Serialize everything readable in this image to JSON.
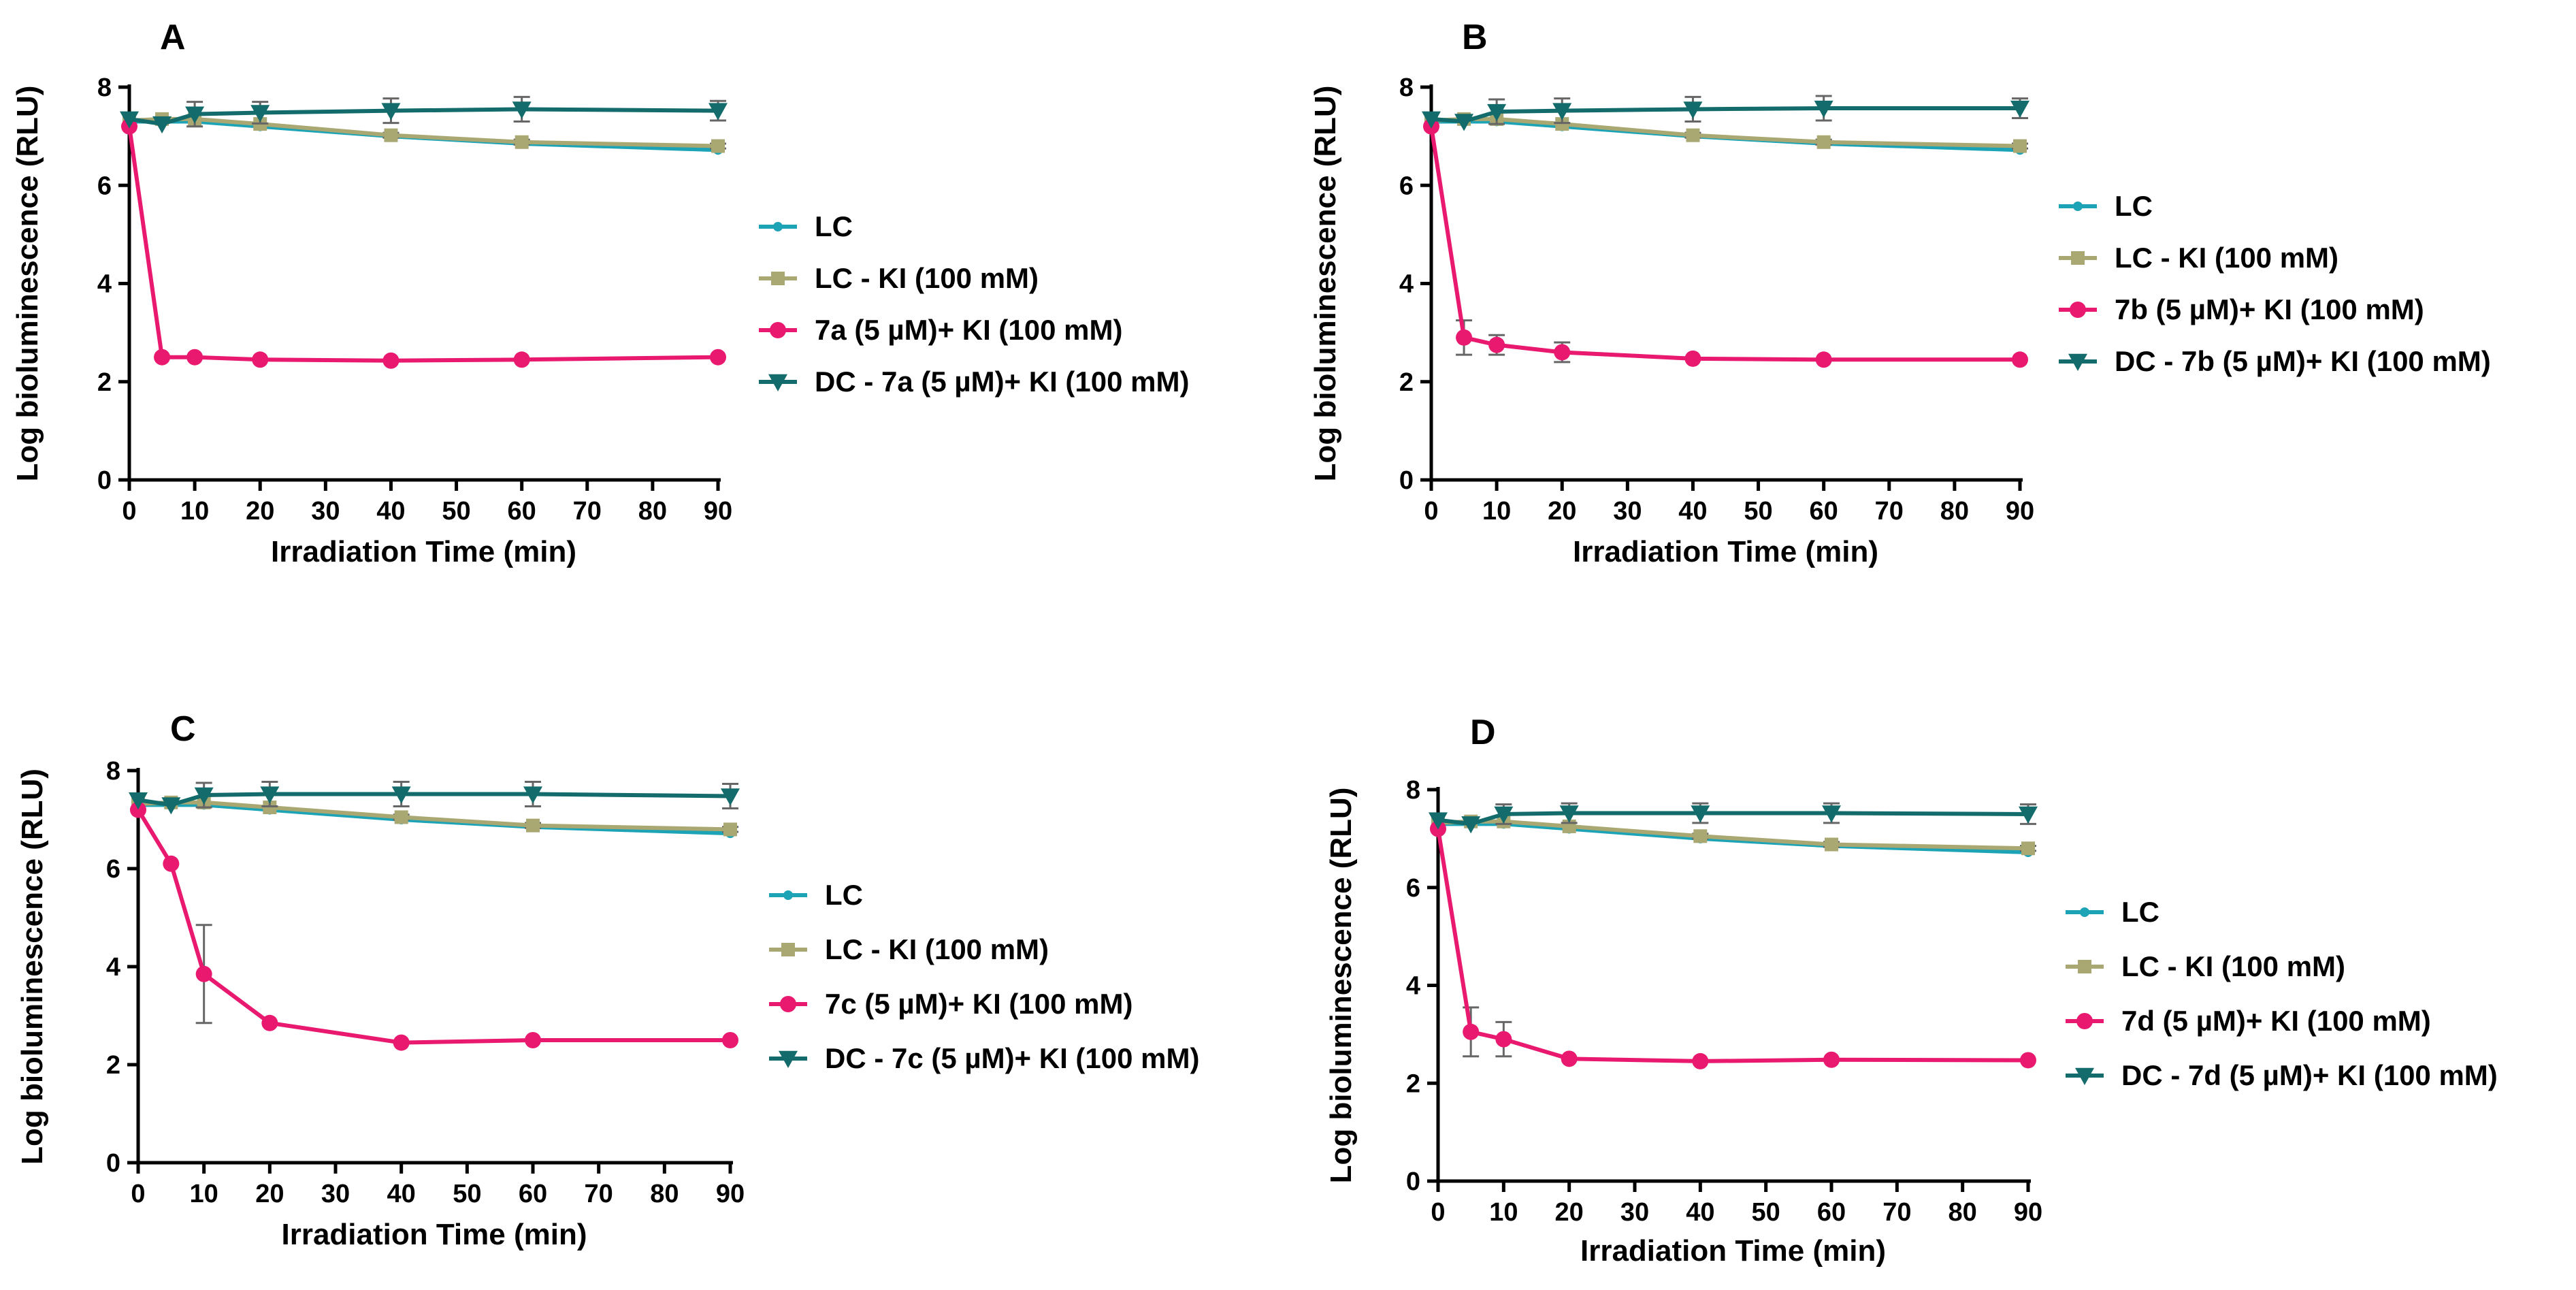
{
  "colors": {
    "LC": "#1ca3b5",
    "LC_KI": "#a9a873",
    "PS": "#e8196f",
    "DC": "#146b6b"
  },
  "chart_data": [
    {
      "panel": "A",
      "type": "line",
      "xlabel": "Irradiation Time (min)",
      "ylabel": "Log bioluminescence (RLU)",
      "xlim": [
        0,
        90
      ],
      "ylim": [
        0,
        8
      ],
      "x_ticks": [
        0,
        10,
        20,
        30,
        40,
        50,
        60,
        70,
        80,
        90
      ],
      "y_ticks": [
        0,
        2,
        4,
        6,
        8
      ],
      "x": [
        0,
        5,
        10,
        20,
        40,
        60,
        90
      ],
      "series": [
        {
          "key": "LC",
          "name": "LC",
          "marker": "circle-small",
          "values": [
            7.3,
            7.3,
            7.3,
            7.2,
            7.0,
            6.85,
            6.72
          ],
          "err": [
            0,
            0,
            0,
            0,
            0,
            0,
            0
          ]
        },
        {
          "key": "LC_KI",
          "name": "LC - KI (100 mM)",
          "marker": "square",
          "values": [
            7.32,
            7.35,
            7.35,
            7.25,
            7.02,
            6.88,
            6.8
          ],
          "err": [
            0,
            0,
            0,
            0,
            0.05,
            0.05,
            0.05
          ]
        },
        {
          "key": "PS",
          "name": "7a (5 µM)+ KI (100 mM)",
          "marker": "circle",
          "values": [
            7.2,
            2.5,
            2.5,
            2.45,
            2.43,
            2.45,
            2.5
          ],
          "err": [
            0,
            0,
            0,
            0,
            0,
            0,
            0
          ]
        },
        {
          "key": "DC",
          "name": "DC - 7a (5 µM)+ KI (100 mM)",
          "marker": "triangle-down",
          "values": [
            7.35,
            7.25,
            7.45,
            7.48,
            7.52,
            7.55,
            7.52
          ],
          "err": [
            0,
            0,
            0.25,
            0.22,
            0.25,
            0.25,
            0.2
          ]
        }
      ]
    },
    {
      "panel": "B",
      "type": "line",
      "xlabel": "Irradiation Time (min)",
      "ylabel": "Log bioluminescence (RLU)",
      "xlim": [
        0,
        90
      ],
      "ylim": [
        0,
        8
      ],
      "x_ticks": [
        0,
        10,
        20,
        30,
        40,
        50,
        60,
        70,
        80,
        90
      ],
      "y_ticks": [
        0,
        2,
        4,
        6,
        8
      ],
      "x": [
        0,
        5,
        10,
        20,
        40,
        60,
        90
      ],
      "series": [
        {
          "key": "LC",
          "name": "LC",
          "marker": "circle-small",
          "values": [
            7.3,
            7.3,
            7.3,
            7.2,
            7.0,
            6.85,
            6.72
          ],
          "err": [
            0,
            0,
            0,
            0,
            0,
            0,
            0
          ]
        },
        {
          "key": "LC_KI",
          "name": "LC - KI (100 mM)",
          "marker": "square",
          "values": [
            7.32,
            7.35,
            7.35,
            7.25,
            7.02,
            6.88,
            6.8
          ],
          "err": [
            0,
            0,
            0,
            0,
            0.05,
            0.05,
            0.05
          ]
        },
        {
          "key": "PS",
          "name": "7b (5 µM)+ KI (100 mM)",
          "marker": "circle",
          "values": [
            7.2,
            2.9,
            2.75,
            2.6,
            2.47,
            2.45,
            2.45
          ],
          "err": [
            0,
            0.35,
            0.2,
            0.2,
            0,
            0,
            0
          ]
        },
        {
          "key": "DC",
          "name": "DC - 7b (5 µM)+ KI (100 mM)",
          "marker": "triangle-down",
          "values": [
            7.35,
            7.3,
            7.5,
            7.52,
            7.55,
            7.57,
            7.57
          ],
          "err": [
            0,
            0,
            0.25,
            0.25,
            0.25,
            0.25,
            0.2
          ]
        }
      ]
    },
    {
      "panel": "C",
      "type": "line",
      "xlabel": "Irradiation Time (min)",
      "ylabel": "Log bioluminescence (RLU)",
      "xlim": [
        0,
        90
      ],
      "ylim": [
        0,
        8
      ],
      "x_ticks": [
        0,
        10,
        20,
        30,
        40,
        50,
        60,
        70,
        80,
        90
      ],
      "y_ticks": [
        0,
        2,
        4,
        6,
        8
      ],
      "x": [
        0,
        5,
        10,
        20,
        40,
        60,
        90
      ],
      "series": [
        {
          "key": "LC",
          "name": "LC",
          "marker": "circle-small",
          "values": [
            7.3,
            7.3,
            7.3,
            7.2,
            7.0,
            6.85,
            6.72
          ],
          "err": [
            0,
            0,
            0,
            0,
            0,
            0,
            0
          ]
        },
        {
          "key": "LC_KI",
          "name": " LC - KI (100 mM)",
          "marker": "square",
          "values": [
            7.32,
            7.35,
            7.35,
            7.25,
            7.05,
            6.88,
            6.8
          ],
          "err": [
            0,
            0,
            0,
            0,
            0.05,
            0.05,
            0.05
          ]
        },
        {
          "key": "PS",
          "name": "7c (5 µM)+ KI (100 mM)",
          "marker": "circle",
          "values": [
            7.2,
            6.1,
            3.85,
            2.85,
            2.45,
            2.5,
            2.5
          ],
          "err": [
            0,
            0,
            1.0,
            0,
            0,
            0,
            0
          ]
        },
        {
          "key": "DC",
          "name": "DC - 7c (5 µM)+ KI (100 mM)",
          "marker": "triangle-down",
          "values": [
            7.4,
            7.3,
            7.5,
            7.52,
            7.52,
            7.52,
            7.48
          ],
          "err": [
            0,
            0,
            0.25,
            0.25,
            0.25,
            0.25,
            0.25
          ]
        }
      ]
    },
    {
      "panel": "D",
      "type": "line",
      "xlabel": "Irradiation Time (min)",
      "ylabel": "Log bioluminescence (RLU)",
      "xlim": [
        0,
        90
      ],
      "ylim": [
        0,
        8
      ],
      "x_ticks": [
        0,
        10,
        20,
        30,
        40,
        50,
        60,
        70,
        80,
        90
      ],
      "y_ticks": [
        0,
        2,
        4,
        6,
        8
      ],
      "x": [
        0,
        5,
        10,
        20,
        40,
        60,
        90
      ],
      "series": [
        {
          "key": "LC",
          "name": "LC",
          "marker": "circle-small",
          "values": [
            7.3,
            7.3,
            7.3,
            7.2,
            7.0,
            6.85,
            6.72
          ],
          "err": [
            0,
            0,
            0,
            0,
            0,
            0,
            0
          ]
        },
        {
          "key": "LC_KI",
          "name": " LC - KI (100 mM)",
          "marker": "square",
          "values": [
            7.32,
            7.35,
            7.35,
            7.25,
            7.05,
            6.88,
            6.8
          ],
          "err": [
            0,
            0,
            0,
            0,
            0.05,
            0.05,
            0.05
          ]
        },
        {
          "key": "PS",
          "name": "7d (5 µM)+ KI (100 mM)",
          "marker": "circle",
          "values": [
            7.2,
            3.05,
            2.9,
            2.5,
            2.45,
            2.48,
            2.47
          ],
          "err": [
            0,
            0.5,
            0.35,
            0,
            0,
            0,
            0
          ]
        },
        {
          "key": "DC",
          "name": "DC - 7d (5 µM)+ KI (100 mM)",
          "marker": "triangle-down",
          "values": [
            7.38,
            7.3,
            7.5,
            7.52,
            7.52,
            7.52,
            7.5
          ],
          "err": [
            0,
            0,
            0.2,
            0.2,
            0.2,
            0.2,
            0.2
          ]
        }
      ]
    }
  ]
}
